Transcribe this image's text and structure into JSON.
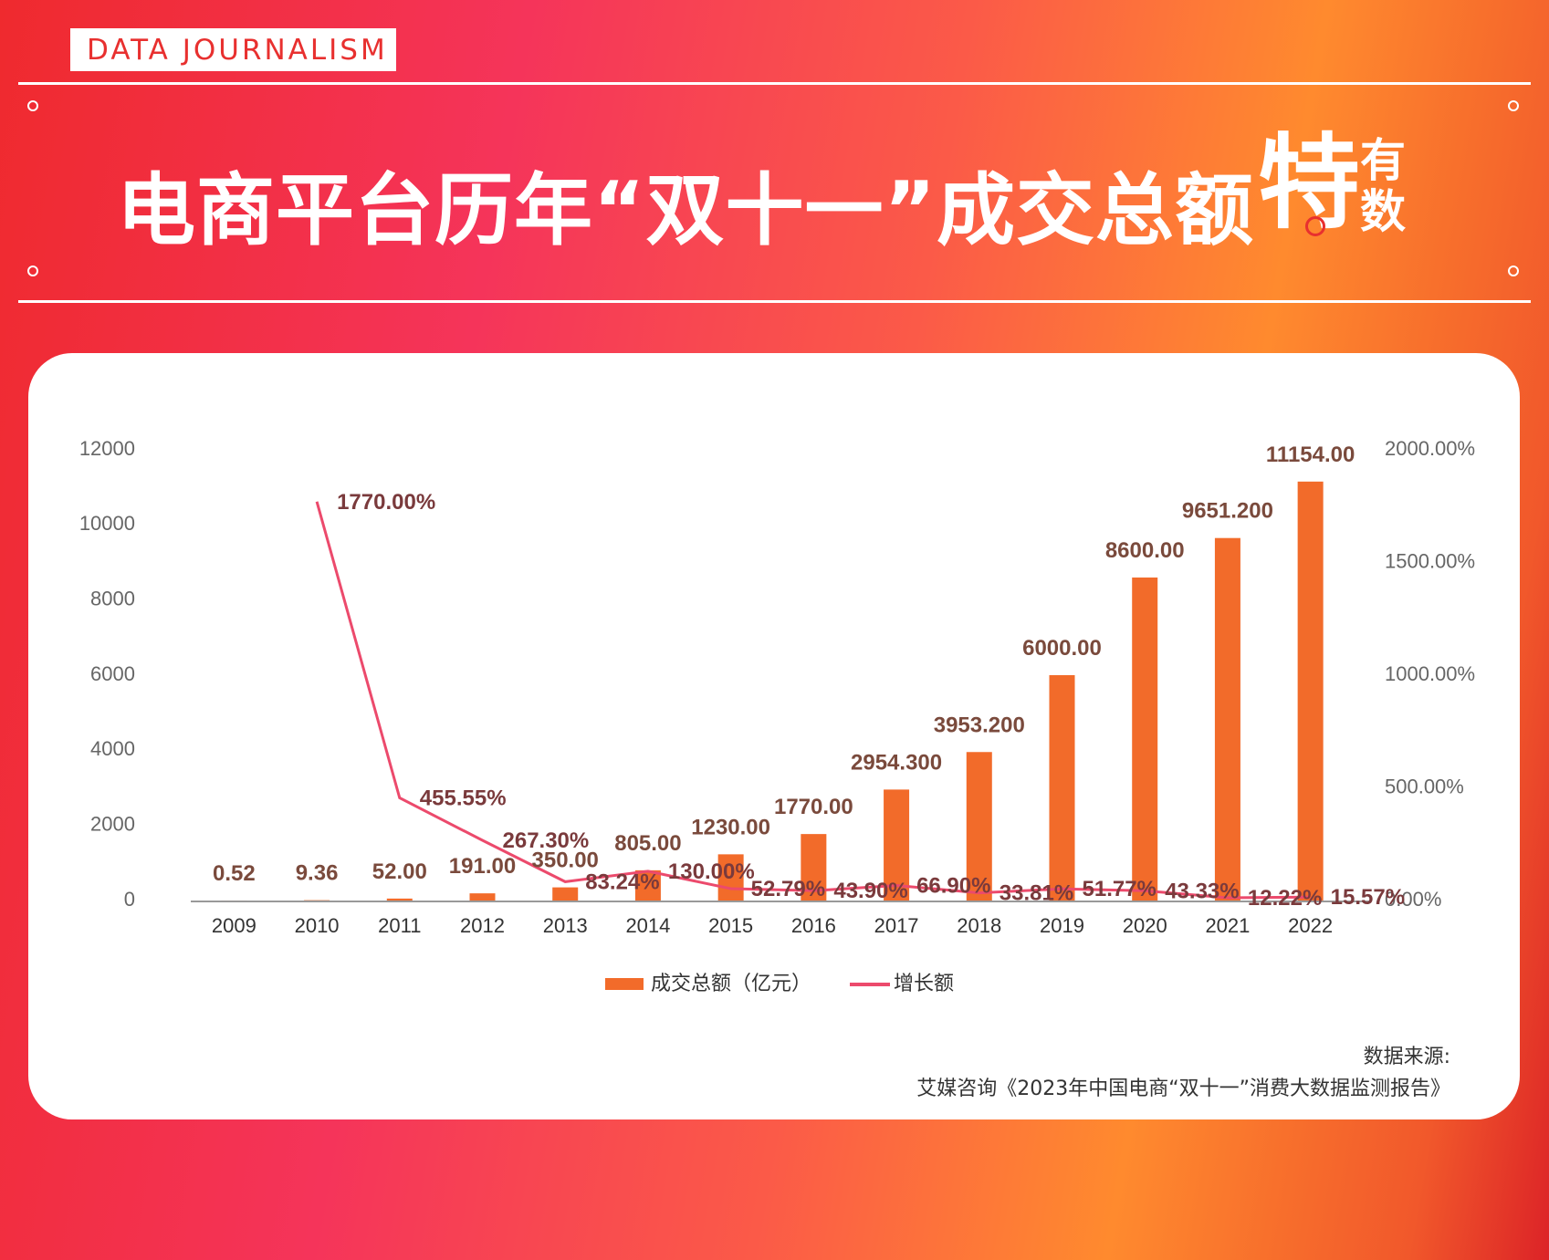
{
  "header": {
    "tag": "DATA JOURNALISM",
    "title": "电商平台历年“双十一”成交总额",
    "logo_big": "特",
    "logo_small_top": "有",
    "logo_small_bottom": "数"
  },
  "chart_data": {
    "type": "bar",
    "categories": [
      "2009",
      "2010",
      "2011",
      "2012",
      "2013",
      "2014",
      "2015",
      "2016",
      "2017",
      "2018",
      "2019",
      "2020",
      "2021",
      "2022"
    ],
    "series": [
      {
        "name": "成交总额（亿元）",
        "type": "bar",
        "axis": "left",
        "values": [
          0.52,
          9.36,
          52.0,
          191.0,
          350.0,
          805.0,
          1230.0,
          1770.0,
          2954.3,
          3953.2,
          6000.0,
          8600.0,
          9651.2,
          11154.0
        ],
        "labels": [
          "0.52",
          "9.36",
          "52.00",
          "191.00",
          "350.00",
          "805.00",
          "1230.00",
          "1770.00",
          "2954.300",
          "3953.200",
          "6000.00",
          "8600.00",
          "9651.200",
          "11154.00"
        ]
      },
      {
        "name": "增长额",
        "type": "line",
        "axis": "right",
        "x": [
          "2010",
          "2011",
          "2012",
          "2013",
          "2014",
          "2015",
          "2016",
          "2017",
          "2018",
          "2019",
          "2020",
          "2021",
          "2022"
        ],
        "values": [
          1770.0,
          455.55,
          267.3,
          83.24,
          130.0,
          52.79,
          43.9,
          66.9,
          33.81,
          51.77,
          43.33,
          12.22,
          15.57
        ],
        "labels": [
          "1770.00%",
          "455.55%",
          "267.30%",
          "83.24%",
          "130.00%",
          "52.79%",
          "43.90%",
          "66.90%",
          "33.81%",
          "51.77%",
          "43.33%",
          "12.22%",
          "15.57%"
        ]
      }
    ],
    "ylim": [
      0,
      12000
    ],
    "y_ticks": [
      "0",
      "2000",
      "4000",
      "6000",
      "8000",
      "10000",
      "12000"
    ],
    "y2lim": [
      0,
      2000
    ],
    "y2_ticks": [
      "0.00%",
      "500.00%",
      "1000.00%",
      "1500.00%",
      "2000.00%"
    ],
    "legend_position": "bottom-center",
    "grid": false,
    "colors": {
      "bar": "#f26b2a",
      "line": "#ec4a6c",
      "bar_label": "#7a4a3c",
      "line_label": "#7a3a3c",
      "tick": "#666666"
    }
  },
  "source": {
    "line1": "数据来源:",
    "line2": "艾媒咨询《2023年中国电商“双十一”消费大数据监测报告》"
  }
}
